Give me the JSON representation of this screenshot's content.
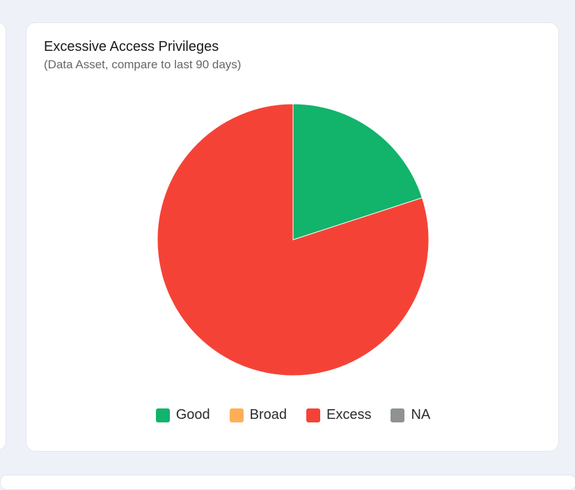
{
  "card": {
    "title": "Excessive Access Privileges",
    "subtitle": "(Data Asset, compare to last 90 days)"
  },
  "chart_data": {
    "type": "pie",
    "title": "Excessive Access Privileges",
    "subtitle": "(Data Asset, compare to last 90 days)",
    "categories": [
      "Good",
      "Broad",
      "Excess",
      "NA"
    ],
    "values": [
      20,
      0,
      80,
      0
    ],
    "colors": [
      "#12b36b",
      "#ffae57",
      "#f44336",
      "#8e9295"
    ],
    "legend": "bottom"
  }
}
